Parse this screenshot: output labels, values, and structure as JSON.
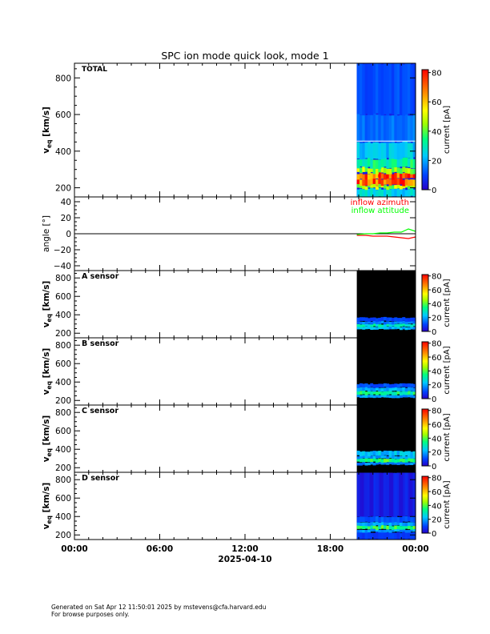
{
  "title": "SPC ion mode quick look, mode 1",
  "chart_data": [
    {
      "type": "heatmap",
      "panel_label": "TOTAL",
      "ylabel_main": "v",
      "ylabel_sub": "eq",
      "ylabel_unit": "[km/s]",
      "y_ticks": [
        "800",
        "600",
        "400",
        "200"
      ],
      "y_tick_values": [
        800,
        600,
        400,
        200
      ],
      "ylim": [
        150,
        880
      ],
      "colorbar_label": "current [pA]",
      "colorbar_ticks": [
        "80",
        "60",
        "40",
        "20",
        "0"
      ],
      "colorbar_tick_values": [
        80,
        60,
        40,
        20,
        0
      ],
      "colorbar_range": [
        0,
        82
      ],
      "data_start": "19:52",
      "data_end": "24:00",
      "bands": [
        {
          "vmin": 150,
          "vmax": 195,
          "level": 22
        },
        {
          "vmin": 195,
          "vmax": 215,
          "level": 45
        },
        {
          "vmin": 215,
          "vmax": 250,
          "level": 70
        },
        {
          "vmin": 250,
          "vmax": 280,
          "level": 76
        },
        {
          "vmin": 280,
          "vmax": 310,
          "level": 45
        },
        {
          "vmin": 310,
          "vmax": 360,
          "level": 30
        },
        {
          "vmin": 360,
          "vmax": 450,
          "level": 20
        },
        {
          "vmin": 450,
          "vmax": 600,
          "level": 12
        },
        {
          "vmin": 600,
          "vmax": 880,
          "level": 9
        }
      ]
    },
    {
      "type": "line",
      "ylabel": "angle [°]",
      "y_ticks": [
        "40",
        "20",
        "0",
        "−20",
        "−40"
      ],
      "y_tick_values": [
        40,
        20,
        0,
        -20,
        -40
      ],
      "ylim": [
        -46,
        46
      ],
      "series": [
        {
          "name": "inflow azimuth",
          "color": "#ff0000",
          "x": [
            "19:52",
            "20:30",
            "21:00",
            "21:30",
            "22:00",
            "22:30",
            "23:00",
            "23:30",
            "24:00"
          ],
          "values": [
            -2,
            -2,
            -3,
            -3,
            -3,
            -4,
            -5,
            -6,
            -4
          ]
        },
        {
          "name": "inflow attitude",
          "color": "#00ff00",
          "x": [
            "19:52",
            "20:30",
            "21:00",
            "21:30",
            "22:00",
            "22:30",
            "23:00",
            "23:30",
            "24:00"
          ],
          "values": [
            -1,
            0,
            0,
            1,
            1,
            2,
            2,
            6,
            3
          ]
        }
      ]
    },
    {
      "type": "heatmap",
      "panel_label": "A sensor",
      "ylabel_main": "v",
      "ylabel_sub": "eq",
      "ylabel_unit": "[km/s]",
      "y_ticks": [
        "800",
        "600",
        "400",
        "200"
      ],
      "y_tick_values": [
        800,
        600,
        400,
        200
      ],
      "ylim": [
        150,
        880
      ],
      "colorbar_label": "current [pA]",
      "colorbar_ticks": [
        "80",
        "60",
        "40",
        "20",
        "0"
      ],
      "colorbar_tick_values": [
        80,
        60,
        40,
        20,
        0
      ],
      "colorbar_range": [
        0,
        82
      ],
      "data_start": "19:52",
      "data_end": "24:00",
      "bands": [
        {
          "vmin": 240,
          "vmax": 270,
          "level": 18
        },
        {
          "vmin": 270,
          "vmax": 300,
          "level": 26
        },
        {
          "vmin": 300,
          "vmax": 330,
          "level": 14
        },
        {
          "vmin": 330,
          "vmax": 370,
          "level": 8
        }
      ]
    },
    {
      "type": "heatmap",
      "panel_label": "B sensor",
      "ylabel_main": "v",
      "ylabel_sub": "eq",
      "ylabel_unit": "[km/s]",
      "y_ticks": [
        "800",
        "600",
        "400",
        "200"
      ],
      "y_tick_values": [
        800,
        600,
        400,
        200
      ],
      "ylim": [
        150,
        880
      ],
      "colorbar_label": "current [pA]",
      "colorbar_ticks": [
        "80",
        "60",
        "40",
        "20",
        "0"
      ],
      "colorbar_tick_values": [
        80,
        60,
        40,
        20,
        0
      ],
      "colorbar_range": [
        0,
        82
      ],
      "data_start": "19:52",
      "data_end": "24:00",
      "bands": [
        {
          "vmin": 230,
          "vmax": 260,
          "level": 16
        },
        {
          "vmin": 260,
          "vmax": 300,
          "level": 30
        },
        {
          "vmin": 300,
          "vmax": 340,
          "level": 18
        },
        {
          "vmin": 340,
          "vmax": 380,
          "level": 9
        }
      ]
    },
    {
      "type": "heatmap",
      "panel_label": "C sensor",
      "ylabel_main": "v",
      "ylabel_sub": "eq",
      "ylabel_unit": "[km/s]",
      "y_ticks": [
        "800",
        "600",
        "400",
        "200"
      ],
      "y_tick_values": [
        800,
        600,
        400,
        200
      ],
      "ylim": [
        150,
        880
      ],
      "colorbar_label": "current [pA]",
      "colorbar_ticks": [
        "80",
        "60",
        "40",
        "20",
        "0"
      ],
      "colorbar_tick_values": [
        80,
        60,
        40,
        20,
        0
      ],
      "colorbar_range": [
        0,
        82
      ],
      "data_start": "19:52",
      "data_end": "24:00",
      "bands": [
        {
          "vmin": 230,
          "vmax": 260,
          "level": 14
        },
        {
          "vmin": 260,
          "vmax": 300,
          "level": 34
        },
        {
          "vmin": 300,
          "vmax": 330,
          "level": 16
        },
        {
          "vmin": 330,
          "vmax": 380,
          "level": 20
        }
      ]
    },
    {
      "type": "heatmap",
      "panel_label": "D sensor",
      "ylabel_main": "v",
      "ylabel_sub": "eq",
      "ylabel_unit": "[km/s]",
      "y_ticks": [
        "800",
        "600",
        "400",
        "200"
      ],
      "y_tick_values": [
        800,
        600,
        400,
        200
      ],
      "ylim": [
        150,
        880
      ],
      "colorbar_label": "current [pA]",
      "colorbar_ticks": [
        "80",
        "60",
        "40",
        "20",
        "0"
      ],
      "colorbar_tick_values": [
        80,
        60,
        40,
        20,
        0
      ],
      "colorbar_range": [
        0,
        82
      ],
      "data_start": "19:52",
      "data_end": "24:00",
      "bands": [
        {
          "vmin": 150,
          "vmax": 230,
          "level": 7
        },
        {
          "vmin": 230,
          "vmax": 260,
          "level": 16
        },
        {
          "vmin": 260,
          "vmax": 300,
          "level": 34
        },
        {
          "vmin": 300,
          "vmax": 340,
          "level": 16
        },
        {
          "vmin": 340,
          "vmax": 400,
          "level": 10
        },
        {
          "vmin": 400,
          "vmax": 880,
          "level": 5
        }
      ]
    }
  ],
  "x_axis": {
    "ticks": [
      "00:00",
      "06:00",
      "12:00",
      "18:00",
      "00:00"
    ],
    "tick_hours": [
      0,
      6,
      12,
      18,
      24
    ],
    "date_label": "2025-04-10",
    "xlim_hours": [
      0,
      24
    ]
  },
  "colors": {
    "frame": "#000000",
    "empty_bg": "#000000",
    "colormap": [
      "#000000",
      "#7a00a8",
      "#1f00ff",
      "#0080ff",
      "#00e6e6",
      "#00ff40",
      "#c8ff00",
      "#ffff00",
      "#ff8000",
      "#ff0000"
    ]
  },
  "footer": {
    "line1": "Generated on Sat Apr 12 11:50:01 2025 by mstevens@cfa.harvard.edu",
    "line2": "For browse purposes only."
  }
}
